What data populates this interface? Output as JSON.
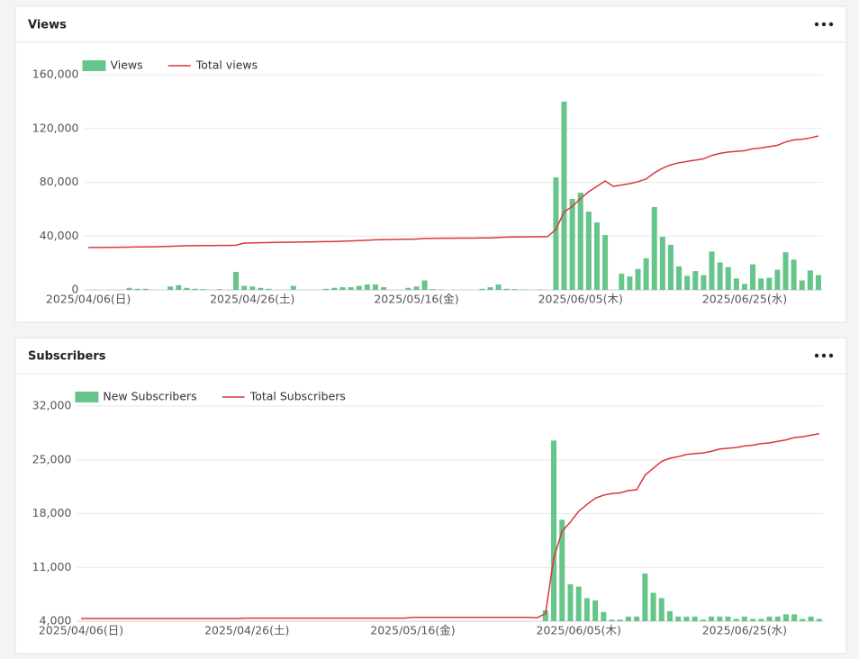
{
  "chart_data": [
    {
      "type": "bar",
      "title": "Views",
      "categories": [
        "2025/04/06(日)",
        null,
        null,
        null,
        null,
        null,
        null,
        null,
        null,
        null,
        null,
        null,
        null,
        null,
        null,
        null,
        null,
        null,
        null,
        null,
        "2025/04/26(土)",
        null,
        null,
        null,
        null,
        null,
        null,
        null,
        null,
        null,
        null,
        null,
        null,
        null,
        null,
        null,
        null,
        null,
        null,
        null,
        "2025/05/16(金)",
        null,
        null,
        null,
        null,
        null,
        null,
        null,
        null,
        null,
        null,
        null,
        null,
        null,
        null,
        null,
        null,
        null,
        null,
        null,
        "2025/06/05(木)",
        null,
        null,
        null,
        null,
        null,
        null,
        null,
        null,
        null,
        null,
        null,
        null,
        null,
        null,
        null,
        null,
        null,
        null,
        null,
        "2025/06/25(水)",
        null,
        null,
        null,
        null,
        null,
        null,
        null,
        null,
        null
      ],
      "series": [
        {
          "name": "Views",
          "color": "#66c58a",
          "kind": "bar",
          "values": [
            0,
            0,
            0,
            0,
            0,
            1500,
            800,
            800,
            0,
            0,
            2500,
            3500,
            1500,
            800,
            600,
            0,
            500,
            0,
            13400,
            3000,
            2500,
            1500,
            800,
            0,
            0,
            3000,
            0,
            0,
            0,
            800,
            1500,
            2000,
            2000,
            3000,
            4000,
            4000,
            2000,
            0,
            0,
            1500,
            2500,
            7000,
            600,
            300,
            0,
            0,
            0,
            0,
            800,
            2000,
            4000,
            800,
            600,
            300,
            0,
            300,
            0,
            83700,
            140000,
            67600,
            72300,
            58200,
            50200,
            40800,
            0,
            12000,
            10000,
            15500,
            23500,
            61600,
            39500,
            33500,
            17500,
            10500,
            14000,
            11000,
            28500,
            20500,
            17000,
            8500,
            4500,
            19000,
            8500,
            9000,
            15000,
            28000,
            22500,
            7000,
            14500,
            11000
          ]
        },
        {
          "name": "Total views",
          "color": "#d9383a",
          "kind": "line",
          "values": [
            31500,
            31500,
            31500,
            31600,
            31700,
            31800,
            31900,
            32000,
            32100,
            32200,
            32400,
            32600,
            32800,
            32900,
            33000,
            33000,
            33100,
            33100,
            33200,
            34800,
            35000,
            35100,
            35200,
            35300,
            35400,
            35500,
            35600,
            35700,
            35800,
            35900,
            36000,
            36200,
            36400,
            36600,
            36900,
            37200,
            37400,
            37500,
            37600,
            37700,
            37800,
            38200,
            38300,
            38400,
            38400,
            38500,
            38500,
            38500,
            38600,
            38700,
            39000,
            39200,
            39300,
            39400,
            39500,
            39500,
            39600,
            45000,
            58000,
            62000,
            68000,
            73000,
            77000,
            81000,
            77000,
            78000,
            79000,
            80500,
            82500,
            87000,
            90500,
            93000,
            94500,
            95500,
            96500,
            97500,
            100000,
            101500,
            102500,
            103000,
            103500,
            105000,
            105500,
            106500,
            107500,
            110000,
            111500,
            112000,
            113000,
            114500
          ]
        }
      ],
      "ylim": [
        0,
        160000
      ],
      "yticks": [
        0,
        {
          "value": 40000,
          "label": "40,000"
        },
        {
          "value": 80000,
          "label": "80,000"
        },
        {
          "value": 120000,
          "label": "120,000"
        },
        {
          "value": 160000,
          "label": "160,000"
        }
      ],
      "grid": true,
      "legend": "top-left"
    },
    {
      "type": "bar",
      "title": "Subscribers",
      "categories": [
        "2025/04/06(日)",
        null,
        null,
        null,
        null,
        null,
        null,
        null,
        null,
        null,
        null,
        null,
        null,
        null,
        null,
        null,
        null,
        null,
        null,
        null,
        "2025/04/26(土)",
        null,
        null,
        null,
        null,
        null,
        null,
        null,
        null,
        null,
        null,
        null,
        null,
        null,
        null,
        null,
        null,
        null,
        null,
        null,
        "2025/05/16(金)",
        null,
        null,
        null,
        null,
        null,
        null,
        null,
        null,
        null,
        null,
        null,
        null,
        null,
        null,
        null,
        null,
        null,
        null,
        null,
        "2025/06/05(木)",
        null,
        null,
        null,
        null,
        null,
        null,
        null,
        null,
        null,
        null,
        null,
        null,
        null,
        null,
        null,
        null,
        null,
        null,
        null,
        "2025/06/25(水)",
        null,
        null,
        null,
        null,
        null,
        null,
        null,
        null,
        null
      ],
      "series": [
        {
          "name": "New Subscribers",
          "color": "#66c58a",
          "kind": "bar",
          "values": [
            4000,
            4000,
            4000,
            4000,
            4000,
            4000,
            4000,
            4000,
            4000,
            4000,
            4000,
            4000,
            4000,
            4000,
            4000,
            4000,
            4000,
            4000,
            4000,
            4000,
            4000,
            4000,
            4000,
            4000,
            4000,
            4000,
            4000,
            4000,
            4000,
            4000,
            4000,
            4000,
            4000,
            4000,
            4000,
            4000,
            4000,
            4000,
            4000,
            4000,
            4000,
            4000,
            4000,
            4000,
            4000,
            4000,
            4000,
            4000,
            4000,
            4000,
            4000,
            4000,
            4000,
            4000,
            4000,
            4000,
            5400,
            27500,
            17200,
            8800,
            8500,
            7000,
            6700,
            5200,
            4200,
            4200,
            4600,
            4600,
            10200,
            7700,
            7000,
            5300,
            4600,
            4600,
            4600,
            4200,
            4600,
            4600,
            4600,
            4300,
            4600,
            4300,
            4300,
            4600,
            4600,
            4900,
            4900,
            4300,
            4600,
            4300
          ]
        },
        {
          "name": "Total Subscribers",
          "color": "#d9383a",
          "kind": "line",
          "values": [
            4350,
            4350,
            4350,
            4350,
            4350,
            4350,
            4350,
            4350,
            4350,
            4350,
            4350,
            4350,
            4350,
            4350,
            4350,
            4350,
            4350,
            4350,
            4350,
            4350,
            4400,
            4400,
            4400,
            4400,
            4400,
            4400,
            4400,
            4400,
            4400,
            4400,
            4400,
            4400,
            4400,
            4400,
            4400,
            4400,
            4400,
            4400,
            4400,
            4400,
            4500,
            4500,
            4500,
            4500,
            4500,
            4500,
            4500,
            4500,
            4500,
            4500,
            4500,
            4500,
            4500,
            4500,
            4500,
            4450,
            5000,
            12200,
            15700,
            16900,
            18300,
            19200,
            20000,
            20400,
            20600,
            20700,
            21000,
            21100,
            23000,
            23900,
            24800,
            25200,
            25400,
            25700,
            25800,
            25900,
            26100,
            26400,
            26500,
            26600,
            26800,
            26900,
            27100,
            27200,
            27400,
            27600,
            27900,
            28000,
            28200,
            28400
          ]
        }
      ],
      "ylim": [
        4000,
        32000
      ],
      "yticks": [
        {
          "value": 4000,
          "label": "4,000"
        },
        {
          "value": 11000,
          "label": "11,000"
        },
        {
          "value": 18000,
          "label": "18,000"
        },
        {
          "value": 25000,
          "label": "25,000"
        },
        {
          "value": 32000,
          "label": "32,000"
        }
      ],
      "grid": true,
      "legend": "top-left"
    }
  ]
}
